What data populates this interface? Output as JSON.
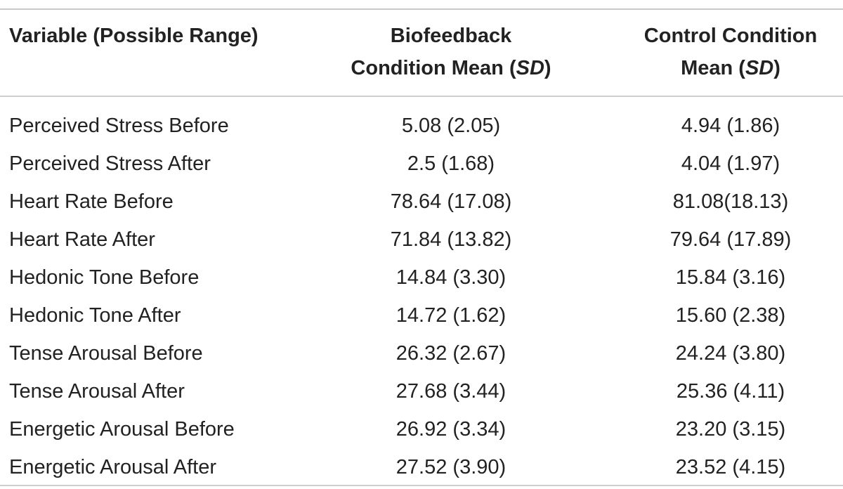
{
  "table": {
    "header": {
      "col1": "Variable (Possible Range)",
      "col2_line1": "Biofeedback",
      "col2_line2_pre": "Condition Mean (",
      "col2_line2_em": "SD",
      "col2_line2_post": ")",
      "col3_line1": "Control Condition",
      "col3_line2_pre": "Mean (",
      "col3_line2_em": "SD",
      "col3_line2_post": ")"
    },
    "rows": [
      {
        "variable": "Perceived Stress Before",
        "biofeedback": "5.08 (2.05)",
        "control": "4.94 (1.86)"
      },
      {
        "variable": "Perceived Stress After",
        "biofeedback": "2.5 (1.68)",
        "control": "4.04 (1.97)"
      },
      {
        "variable": "Heart Rate Before",
        "biofeedback": "78.64 (17.08)",
        "control": "81.08(18.13)"
      },
      {
        "variable": "Heart Rate After",
        "biofeedback": "71.84 (13.82)",
        "control": "79.64 (17.89)"
      },
      {
        "variable": "Hedonic Tone Before",
        "biofeedback": "14.84 (3.30)",
        "control": "15.84 (3.16)"
      },
      {
        "variable": "Hedonic Tone After",
        "biofeedback": "14.72 (1.62)",
        "control": "15.60 (2.38)"
      },
      {
        "variable": "Tense Arousal Before",
        "biofeedback": "26.32 (2.67)",
        "control": "24.24 (3.80)"
      },
      {
        "variable": "Tense Arousal After",
        "biofeedback": "27.68 (3.44)",
        "control": "25.36 (4.11)"
      },
      {
        "variable": "Energetic Arousal Before",
        "biofeedback": "26.92 (3.34)",
        "control": "23.20 (3.15)"
      },
      {
        "variable": "Energetic Arousal After",
        "biofeedback": "27.52 (3.90)",
        "control": "23.52 (4.15)"
      }
    ]
  }
}
